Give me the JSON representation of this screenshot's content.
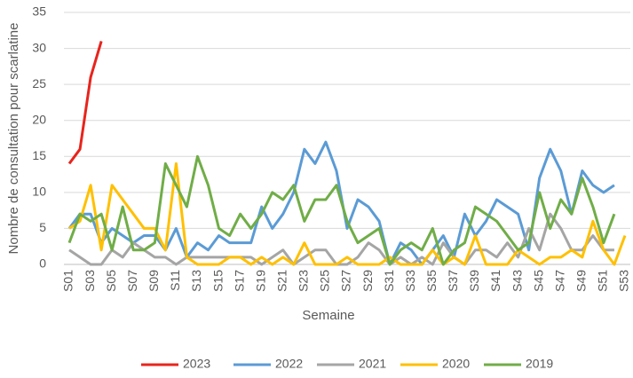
{
  "chart_data": {
    "type": "line",
    "x_label": "Semaine",
    "y_label": "Nombre de consultation pour scarlatine",
    "categories": [
      "S01",
      null,
      "S03",
      null,
      "S05",
      null,
      "S07",
      null,
      "S09",
      null,
      "S11",
      null,
      "S13",
      null,
      "S15",
      null,
      "S17",
      null,
      "S19",
      null,
      "S21",
      null,
      "S23",
      null,
      "S25",
      null,
      "S27",
      null,
      "S29",
      null,
      "S31",
      null,
      "S33",
      null,
      "S35",
      null,
      "S37",
      null,
      "S39",
      null,
      "S41",
      null,
      "S43",
      null,
      "S45",
      null,
      "S47",
      null,
      "S49",
      null,
      "S51",
      null,
      "S53"
    ],
    "series": [
      {
        "name": "2023",
        "color": "#e8241c",
        "values": [
          14,
          16,
          26,
          31,
          null,
          null,
          null,
          null,
          null,
          null,
          null,
          null,
          null,
          null,
          null,
          null,
          null,
          null,
          null,
          null,
          null,
          null,
          null,
          null,
          null,
          null,
          null,
          null,
          null,
          null,
          null,
          null,
          null,
          null,
          null,
          null,
          null,
          null,
          null,
          null,
          null,
          null,
          null,
          null,
          null,
          null,
          null,
          null,
          null,
          null,
          null,
          null,
          null
        ]
      },
      {
        "name": "2022",
        "color": "#5b9bd5",
        "values": [
          5,
          7,
          7,
          3,
          5,
          4,
          3,
          4,
          4,
          2,
          5,
          1,
          3,
          2,
          4,
          3,
          3,
          3,
          8,
          5,
          7,
          10,
          16,
          14,
          17,
          13,
          5,
          9,
          8,
          6,
          0,
          3,
          2,
          0,
          2,
          4,
          1,
          7,
          4,
          6,
          9,
          8,
          7,
          2,
          12,
          16,
          13,
          7,
          13,
          11,
          10,
          11,
          null
        ]
      },
      {
        "name": "2021",
        "color": "#a5a5a5",
        "values": [
          2,
          1,
          0,
          0,
          2,
          1,
          3,
          2,
          1,
          1,
          0,
          1,
          1,
          1,
          1,
          1,
          1,
          1,
          0,
          1,
          2,
          0,
          1,
          2,
          2,
          0,
          0,
          1,
          3,
          2,
          0,
          1,
          0,
          1,
          0,
          3,
          1,
          0,
          2,
          2,
          1,
          3,
          1,
          5,
          2,
          7,
          5,
          2,
          2,
          4,
          2,
          2,
          null
        ]
      },
      {
        "name": "2020",
        "color": "#ffc000",
        "values": [
          5,
          6,
          11,
          2,
          11,
          9,
          7,
          5,
          5,
          2,
          14,
          1,
          0,
          0,
          0,
          1,
          1,
          0,
          1,
          0,
          1,
          0,
          3,
          0,
          0,
          0,
          1,
          0,
          0,
          0,
          1,
          0,
          0,
          0,
          2,
          0,
          1,
          0,
          4,
          0,
          0,
          0,
          2,
          1,
          0,
          1,
          1,
          2,
          1,
          6,
          2,
          0,
          4
        ]
      },
      {
        "name": "2019",
        "color": "#70ad47",
        "values": [
          3,
          7,
          6,
          7,
          2,
          8,
          2,
          2,
          3,
          14,
          11,
          8,
          15,
          11,
          5,
          4,
          7,
          5,
          7,
          10,
          9,
          11,
          6,
          9,
          9,
          11,
          6,
          3,
          4,
          5,
          0,
          2,
          3,
          2,
          5,
          0,
          2,
          3,
          8,
          7,
          6,
          4,
          2,
          3,
          10,
          5,
          9,
          7,
          12,
          8,
          3,
          7,
          null
        ]
      }
    ],
    "ylim": [
      0,
      35
    ],
    "yticks": [
      0,
      5,
      10,
      15,
      20,
      25,
      30,
      35
    ],
    "grid": true
  }
}
